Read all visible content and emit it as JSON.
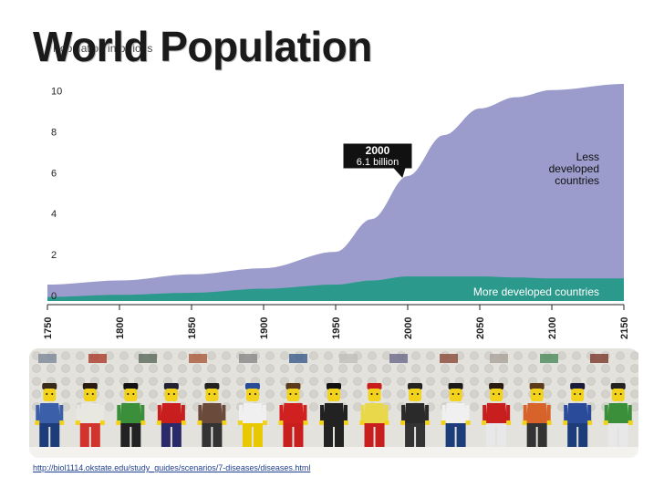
{
  "slide": {
    "title": "World Population",
    "source_url": "http://biol1114.okstate.edu/study_guides/scenarios/7-diseases/diseases.html"
  },
  "chart_data": {
    "type": "area",
    "ylabel": "Population in billions",
    "x": [
      1750,
      1800,
      1850,
      1900,
      1950,
      1975,
      2000,
      2025,
      2050,
      2075,
      2100,
      2150
    ],
    "x_ticks": [
      1750,
      1800,
      1850,
      1900,
      1950,
      2000,
      2050,
      2100,
      2150
    ],
    "y_ticks": [
      0,
      2,
      4,
      6,
      8,
      10
    ],
    "xlim": [
      1750,
      2150
    ],
    "ylim": [
      0,
      10.6
    ],
    "series": [
      {
        "name": "More developed countries",
        "color": "#2b9a8c",
        "values": [
          0.2,
          0.3,
          0.4,
          0.6,
          0.8,
          1.0,
          1.2,
          1.2,
          1.2,
          1.15,
          1.1,
          1.1
        ]
      },
      {
        "name": "Less developed countries",
        "color": "#9b9ccc",
        "values": [
          0.6,
          0.7,
          0.9,
          1.0,
          1.6,
          3.0,
          4.9,
          6.9,
          8.2,
          8.8,
          9.2,
          9.5
        ]
      }
    ],
    "annotation": {
      "line1": "2000",
      "line2": "6.1 billion",
      "x": 2000,
      "y": 6.1
    },
    "grid": true
  },
  "lego": {
    "figures": [
      {
        "hair": "#3a2a1a",
        "torso": "#3b5fa8",
        "legs": "#1d3d7a"
      },
      {
        "hair": "#2a1a10",
        "torso": "#e8e8e0",
        "legs": "#d0342c"
      },
      {
        "hair": "#111111",
        "torso": "#3b8f3a",
        "legs": "#222222"
      },
      {
        "hair": "#222233",
        "torso": "#c81e1e",
        "legs": "#2a2a6a"
      },
      {
        "hair": "#222222",
        "torso": "#6a4a3a",
        "legs": "#333333"
      },
      {
        "hair": "#2a4a9a",
        "torso": "#f0f0f0",
        "legs": "#e8c800"
      },
      {
        "hair": "#5a3a1a",
        "torso": "#d02020",
        "legs": "#c81e1e"
      },
      {
        "hair": "#111111",
        "torso": "#222222",
        "legs": "#222222"
      },
      {
        "hair": "#c81e1e",
        "torso": "#e8d84a",
        "legs": "#c81e1e"
      },
      {
        "hair": "#222222",
        "torso": "#2a2a2a",
        "legs": "#333333"
      },
      {
        "hair": "#1a1a1a",
        "torso": "#f0f0f0",
        "legs": "#1d3d7a"
      },
      {
        "hair": "#2a1a10",
        "torso": "#c81e1e",
        "legs": "#e8e8e8"
      },
      {
        "hair": "#5a3a1a",
        "torso": "#d8632a",
        "legs": "#333333"
      },
      {
        "hair": "#1a1a3a",
        "torso": "#2a4a9a",
        "legs": "#1d3d7a"
      },
      {
        "hair": "#222222",
        "torso": "#3b8f3a",
        "legs": "#e8e8e8"
      }
    ]
  }
}
